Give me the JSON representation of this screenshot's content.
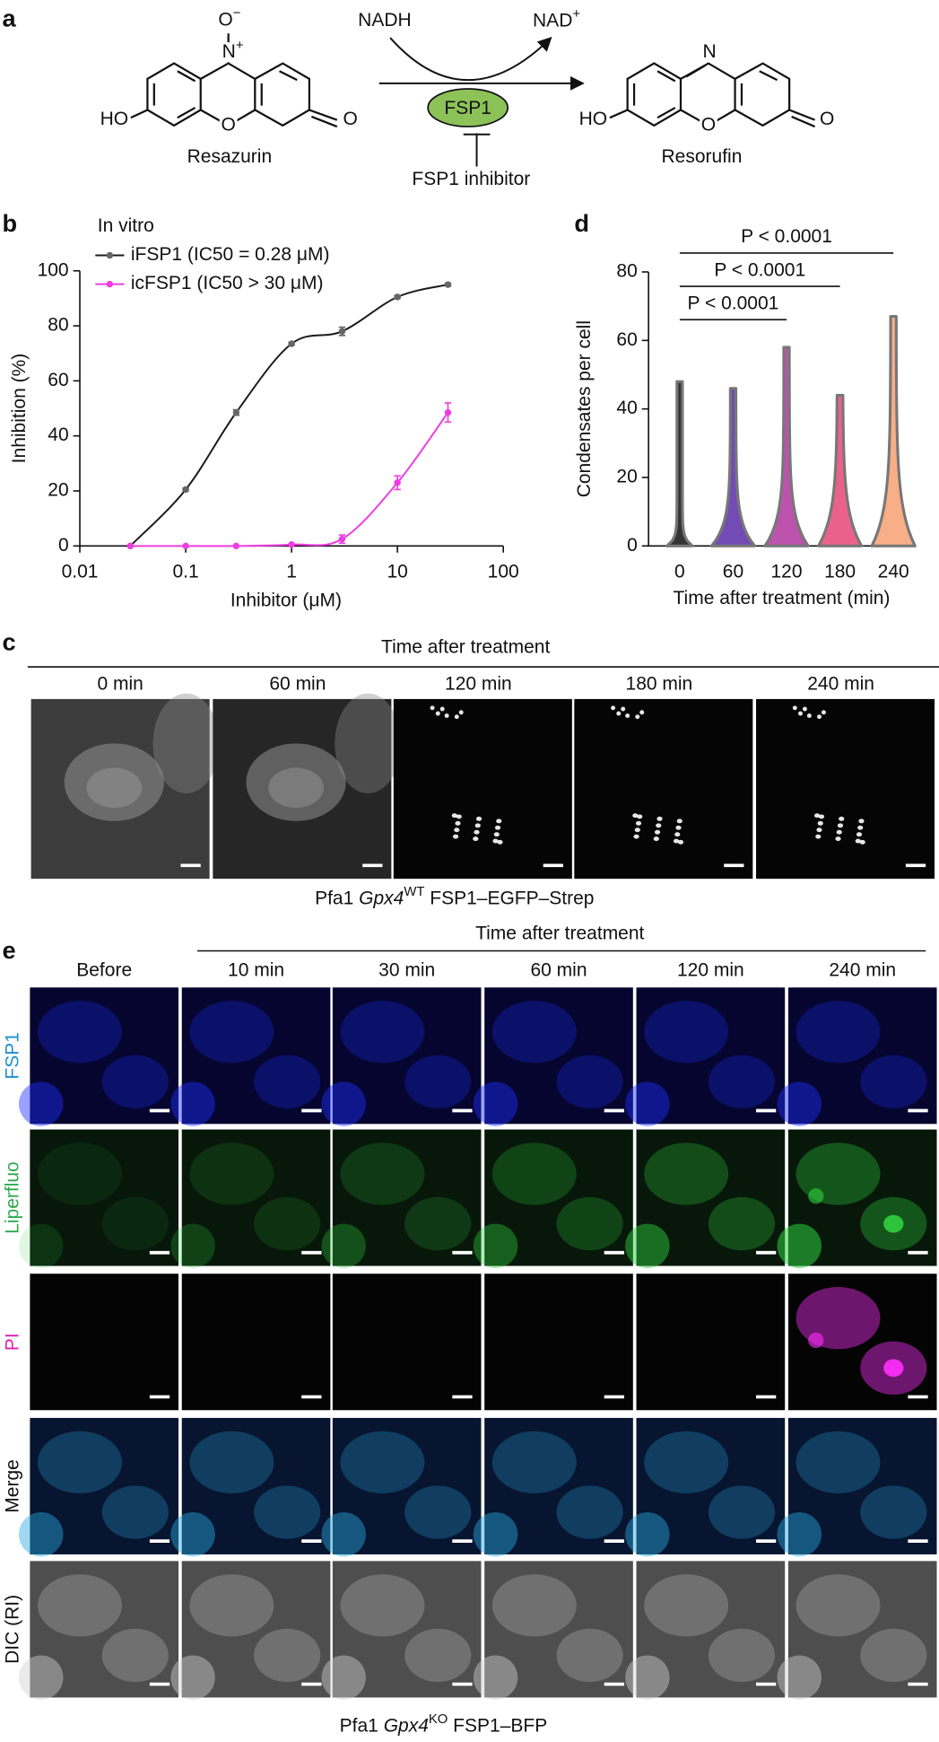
{
  "panel_labels": [
    "a",
    "b",
    "c",
    "d",
    "e"
  ],
  "a": {
    "reactant": "Resazurin",
    "product": "Resorufin",
    "cofactor_in": "NADH",
    "cofactor_out": [
      "NAD",
      "+"
    ],
    "enzyme": "FSP1",
    "inhibitor": "FSP1 inhibitor",
    "reactant_atoms": {
      "oxide": [
        "O",
        "−"
      ],
      "nitrogen": [
        "N",
        "+"
      ],
      "hydroxyl": "HO",
      "ring_oxygen": "O",
      "keto": "O"
    },
    "product_atoms": {
      "nitrogen": "N",
      "hydroxyl": "HO",
      "ring_oxygen": "O",
      "keto": "O"
    }
  },
  "chart_data": [
    {
      "type": "line",
      "subtitle": "In vitro",
      "x": [
        0.03,
        0.1,
        0.3,
        1,
        3,
        10,
        30
      ],
      "series": [
        {
          "name": "iFSP1 (IC50 = 0.28 μM)",
          "color": "#1a1a1a",
          "marker_color": "#666666",
          "values": [
            0,
            20.5,
            48.5,
            73.5,
            78,
            90.5,
            95
          ],
          "errors": [
            0,
            0.5,
            1,
            0.5,
            1.5,
            0.5,
            0.5
          ]
        },
        {
          "name": "icFSP1 (IC50 > 30 μM)",
          "color": "#ee3de0",
          "marker_color": "#ee3de0",
          "values": [
            0,
            0,
            0,
            0.5,
            2.5,
            23,
            48.5
          ],
          "errors": [
            0,
            0,
            0,
            0,
            1.5,
            2.5,
            3.5
          ]
        }
      ],
      "xlabel": "Inhibitor (μM)",
      "ylabel": "Inhibition (%)",
      "xscale": "log",
      "xlim": [
        0.01,
        100
      ],
      "xticks": [
        0.01,
        0.1,
        1,
        10,
        100
      ],
      "ylim": [
        0,
        100
      ],
      "yticks": [
        0,
        20,
        40,
        60,
        80,
        100
      ]
    },
    {
      "type": "violin",
      "categories": [
        "0",
        "60",
        "120",
        "180",
        "240"
      ],
      "values": [
        48,
        46,
        58,
        44,
        67
      ],
      "colors": [
        "#111111",
        "#5a2ca8",
        "#b0359f",
        "#e8457a",
        "#f7a072"
      ],
      "xlabel": "Time after treatment (min)",
      "ylabel": "Condensates per cell",
      "ylim": [
        0,
        80
      ],
      "yticks": [
        0,
        20,
        40,
        60,
        80
      ],
      "annotations": [
        {
          "text": "P < 0.0001",
          "from": "0",
          "to": "120"
        },
        {
          "text": "P < 0.0001",
          "from": "0",
          "to": "180"
        },
        {
          "text": "P < 0.0001",
          "from": "0",
          "to": "240"
        }
      ]
    }
  ],
  "c": {
    "header": "Time after treatment",
    "columns": [
      "0 min",
      "60 min",
      "120 min",
      "180 min",
      "240 min"
    ],
    "caption": [
      "Pfa1 ",
      "Gpx4",
      "WT",
      " FSP1–EGFP–Strep"
    ]
  },
  "e": {
    "header": "Time after treatment",
    "columns": [
      "Before",
      "10 min",
      "30 min",
      "60 min",
      "120 min",
      "240 min"
    ],
    "rows": [
      "FSP1",
      "Liperfluo",
      "PI",
      "Merge",
      "DIC (RI)"
    ],
    "caption": [
      "Pfa1 ",
      "Gpx4",
      "KO",
      " FSP1–BFP"
    ]
  }
}
